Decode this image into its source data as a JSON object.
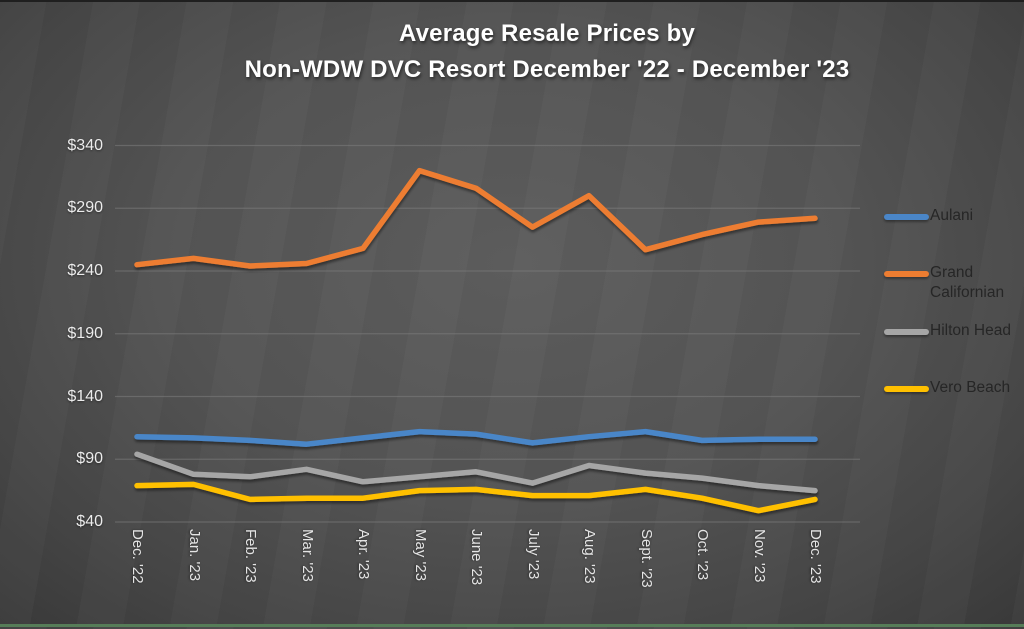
{
  "title": {
    "line1": "Average Resale Prices by",
    "line2": "Non-WDW DVC Resort December '22 - December '23"
  },
  "chart_data": {
    "type": "line",
    "title": "Average Resale Prices by Non-WDW DVC Resort December '22 - December '23",
    "categories": [
      "Dec. '22",
      "Jan. '23",
      "Feb. '23",
      "Mar. '23",
      "Apr. '23",
      "May '23",
      "June '23",
      "July '23",
      "Aug. '23",
      "Sept. '23",
      "Oct. '23",
      "Nov. '23",
      "Dec. '23"
    ],
    "series": [
      {
        "name": "Aulani",
        "color": "#4A86C8",
        "values": [
          108,
          107,
          105,
          102,
          107,
          112,
          110,
          103,
          108,
          112,
          105,
          106,
          106
        ]
      },
      {
        "name": "Grand Californian",
        "color": "#ED7D31",
        "values": [
          245,
          250,
          244,
          246,
          258,
          320,
          306,
          275,
          300,
          257,
          269,
          279,
          282
        ]
      },
      {
        "name": "Hilton Head",
        "color": "#A6A6A6",
        "values": [
          94,
          78,
          76,
          82,
          72,
          76,
          80,
          71,
          85,
          79,
          75,
          69,
          65
        ]
      },
      {
        "name": "Vero Beach",
        "color": "#FFC000",
        "values": [
          69,
          70,
          58,
          59,
          59,
          65,
          66,
          61,
          61,
          66,
          59,
          49,
          58
        ]
      }
    ],
    "y_ticks": [
      {
        "value": 340,
        "label": "$340"
      },
      {
        "value": 290,
        "label": "$290"
      },
      {
        "value": 240,
        "label": "$240"
      },
      {
        "value": 190,
        "label": "$190"
      },
      {
        "value": 140,
        "label": "$140"
      },
      {
        "value": 90,
        "label": "$90"
      },
      {
        "value": 40,
        "label": "$40"
      }
    ],
    "ylim": [
      40,
      340
    ],
    "xlabel": "",
    "ylabel": "",
    "grid": true,
    "legend_position": "right"
  },
  "colors": {
    "background_center": "#575757",
    "background_edge": "#343434",
    "bottom_border": "#567D58",
    "top_border": "#1F1F1F",
    "gridline": "#7E7E7E",
    "axis_text": "#ECECEC",
    "legend_text": "#262626",
    "title_text": "#FFFFFF"
  }
}
